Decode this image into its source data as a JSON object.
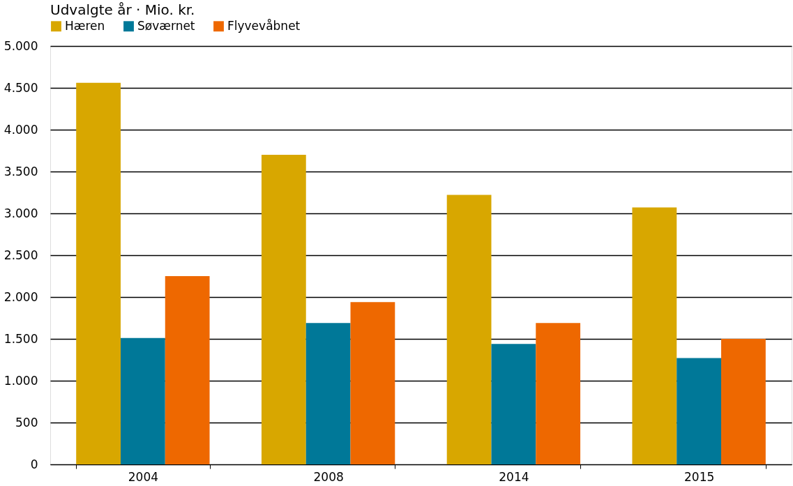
{
  "chart_data": {
    "type": "bar",
    "subtitle": "Udvalgte år · Mio. kr.",
    "categories": [
      "2004",
      "2008",
      "2014",
      "2015"
    ],
    "series": [
      {
        "name": "Hæren",
        "color": "#d8a700",
        "values": [
          4560,
          3700,
          3220,
          3070
        ]
      },
      {
        "name": "Søværnet",
        "color": "#007898",
        "values": [
          1510,
          1690,
          1440,
          1270
        ]
      },
      {
        "name": "Flyvevåbnet",
        "color": "#ee6800",
        "values": [
          2250,
          1940,
          1690,
          1500
        ]
      }
    ],
    "ylim": [
      0,
      5000
    ],
    "yticks": [
      {
        "value": 0,
        "label": "0"
      },
      {
        "value": 500,
        "label": "500"
      },
      {
        "value": 1000,
        "label": "1.000"
      },
      {
        "value": 1500,
        "label": "1.500"
      },
      {
        "value": 2000,
        "label": "2.000"
      },
      {
        "value": 2500,
        "label": "2.500"
      },
      {
        "value": 3000,
        "label": "3.000"
      },
      {
        "value": 3500,
        "label": "3.500"
      },
      {
        "value": 4000,
        "label": "4.000"
      },
      {
        "value": 4500,
        "label": "4.500"
      },
      {
        "value": 5000,
        "label": "5.000"
      }
    ],
    "grid": "y",
    "legend": "top left"
  }
}
